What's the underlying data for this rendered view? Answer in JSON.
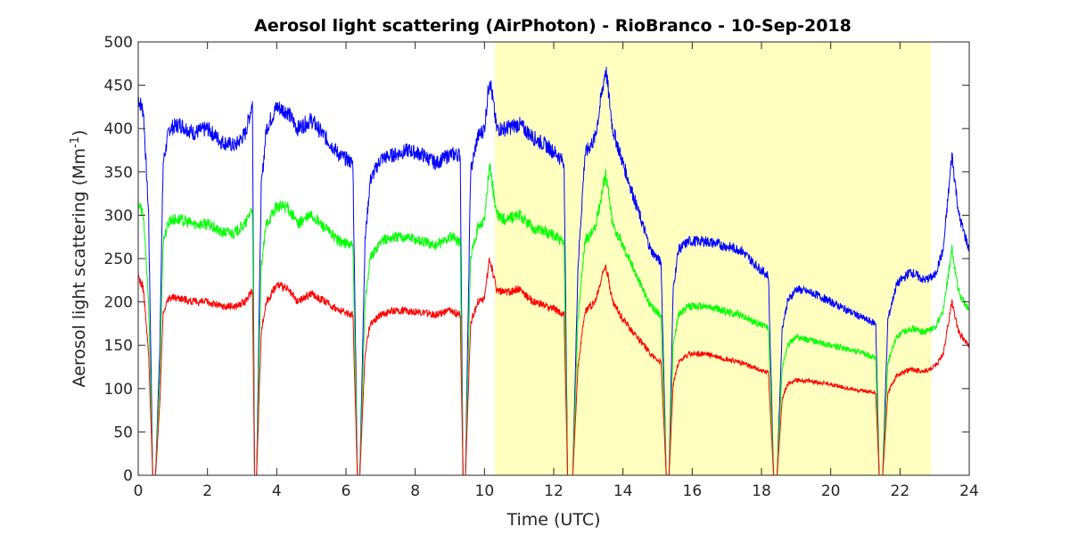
{
  "chart_data": {
    "type": "line",
    "title": "Aerosol light scattering (AirPhoton) - RioBranco - 10-Sep-2018",
    "xlabel": "Time (UTC)",
    "ylabel_main": "Aerosol light scattering (Mm",
    "ylabel_sup": "-1",
    "ylabel_close": ")",
    "xlim": [
      0,
      24
    ],
    "ylim": [
      0,
      500
    ],
    "xticks": [
      "0",
      "2",
      "4",
      "6",
      "8",
      "10",
      "12",
      "14",
      "16",
      "18",
      "20",
      "22",
      "24"
    ],
    "yticks": [
      "0",
      "50",
      "100",
      "150",
      "200",
      "250",
      "300",
      "350",
      "400",
      "450",
      "500"
    ],
    "grid": false,
    "legend": "none",
    "highlight_span": {
      "x_start": 10.3,
      "x_end": 22.9,
      "color": "#ffffbf"
    },
    "x": [
      0,
      0.15,
      0.3,
      0.42,
      0.5,
      0.62,
      0.72,
      0.9,
      1.2,
      1.6,
      2.0,
      2.4,
      2.8,
      3.1,
      3.3,
      3.36,
      3.42,
      3.55,
      3.7,
      4.0,
      4.3,
      4.6,
      5.0,
      5.4,
      5.8,
      6.2,
      6.33,
      6.4,
      6.55,
      6.7,
      7.0,
      7.4,
      7.8,
      8.2,
      8.6,
      9.0,
      9.3,
      9.38,
      9.45,
      9.6,
      9.8,
      10.0,
      10.15,
      10.35,
      10.6,
      11.0,
      11.4,
      11.8,
      12.1,
      12.3,
      12.4,
      12.55,
      12.7,
      12.9,
      13.2,
      13.5,
      13.7,
      14.0,
      14.4,
      14.8,
      15.1,
      15.25,
      15.33,
      15.45,
      15.6,
      15.9,
      16.4,
      16.9,
      17.4,
      17.9,
      18.2,
      18.35,
      18.45,
      18.6,
      18.75,
      19.0,
      19.5,
      20.0,
      20.5,
      21.0,
      21.3,
      21.4,
      21.5,
      21.65,
      21.9,
      22.3,
      22.7,
      23.0,
      23.25,
      23.5,
      23.7,
      24.0
    ],
    "series": [
      {
        "color": "#0000ff",
        "values": [
          435,
          420,
          300,
          0,
          0,
          140,
          360,
          400,
          405,
          395,
          400,
          385,
          380,
          395,
          430,
          0,
          0,
          330,
          400,
          425,
          420,
          400,
          410,
          390,
          370,
          360,
          0,
          0,
          270,
          340,
          365,
          370,
          375,
          370,
          360,
          370,
          370,
          0,
          0,
          350,
          390,
          400,
          460,
          400,
          400,
          405,
          390,
          380,
          370,
          360,
          0,
          0,
          240,
          370,
          390,
          470,
          400,
          360,
          310,
          260,
          245,
          0,
          0,
          215,
          260,
          270,
          270,
          265,
          260,
          240,
          230,
          0,
          0,
          170,
          200,
          215,
          210,
          200,
          190,
          180,
          175,
          0,
          0,
          180,
          220,
          235,
          225,
          230,
          260,
          370,
          300,
          260
        ]
      },
      {
        "color": "#00ff00",
        "values": [
          315,
          300,
          200,
          0,
          0,
          110,
          270,
          295,
          295,
          290,
          290,
          280,
          280,
          290,
          310,
          0,
          0,
          240,
          290,
          310,
          310,
          290,
          300,
          285,
          270,
          265,
          0,
          0,
          200,
          250,
          270,
          275,
          275,
          270,
          265,
          275,
          270,
          0,
          0,
          250,
          285,
          295,
          360,
          300,
          295,
          300,
          285,
          280,
          275,
          265,
          0,
          0,
          180,
          270,
          285,
          350,
          290,
          265,
          230,
          195,
          185,
          0,
          0,
          150,
          185,
          195,
          195,
          190,
          185,
          175,
          170,
          0,
          0,
          125,
          150,
          160,
          155,
          150,
          145,
          140,
          135,
          0,
          0,
          130,
          160,
          170,
          165,
          170,
          190,
          260,
          210,
          190
        ]
      },
      {
        "color": "#ff0000",
        "values": [
          230,
          215,
          140,
          0,
          0,
          80,
          190,
          205,
          205,
          200,
          200,
          195,
          195,
          200,
          215,
          0,
          0,
          165,
          200,
          220,
          215,
          200,
          210,
          200,
          190,
          185,
          0,
          0,
          140,
          175,
          185,
          190,
          190,
          188,
          185,
          190,
          185,
          0,
          0,
          175,
          200,
          205,
          250,
          215,
          210,
          215,
          200,
          195,
          190,
          185,
          0,
          0,
          125,
          190,
          200,
          245,
          200,
          180,
          160,
          140,
          130,
          0,
          0,
          105,
          130,
          140,
          140,
          135,
          130,
          122,
          118,
          0,
          0,
          88,
          105,
          110,
          108,
          105,
          100,
          97,
          95,
          0,
          0,
          95,
          115,
          122,
          120,
          125,
          140,
          200,
          165,
          148
        ]
      }
    ]
  }
}
